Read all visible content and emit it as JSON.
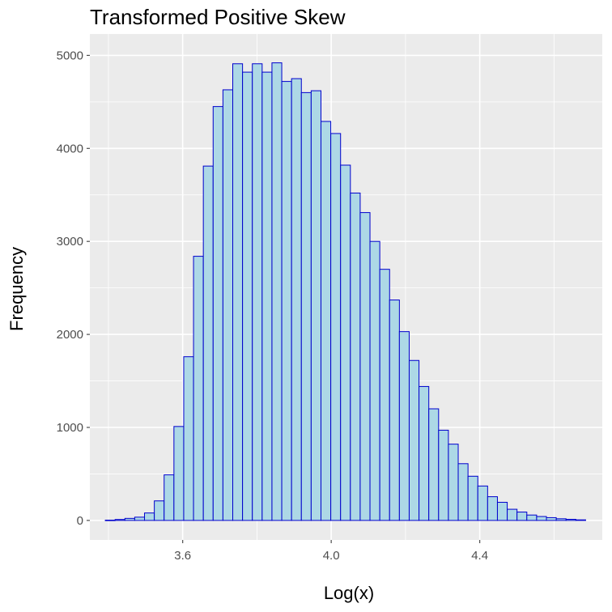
{
  "chart_data": {
    "type": "bar",
    "subtype": "histogram",
    "title": "Transformed Positive Skew",
    "xlabel": "Log(x)",
    "ylabel": "Frequency",
    "xlim": [
      3.35,
      4.73
    ],
    "ylim": [
      -210,
      5230
    ],
    "x_ticks": [
      3.6,
      4.0,
      4.4
    ],
    "x_tick_labels": [
      "3.6",
      "4.0",
      "4.4"
    ],
    "y_ticks": [
      0,
      1000,
      2000,
      3000,
      4000,
      5000
    ],
    "y_tick_labels": [
      "0",
      "1000",
      "2000",
      "3000",
      "4000",
      "5000"
    ],
    "x_minor_ticks": [
      3.4,
      3.8,
      4.2,
      4.6
    ],
    "y_minor_ticks": [
      500,
      1500,
      2500,
      3500,
      4500
    ],
    "grid": true,
    "legend": "none",
    "bin_start": 3.3916,
    "bin_width": 0.0264,
    "values": [
      3,
      10,
      22,
      35,
      80,
      210,
      490,
      1010,
      1760,
      2840,
      3810,
      4450,
      4630,
      4910,
      4820,
      4910,
      4820,
      4920,
      4720,
      4750,
      4600,
      4620,
      4290,
      4160,
      3820,
      3520,
      3310,
      3000,
      2700,
      2370,
      2030,
      1720,
      1440,
      1200,
      970,
      820,
      610,
      475,
      370,
      255,
      195,
      120,
      90,
      58,
      42,
      30,
      18,
      12,
      6
    ],
    "colors": {
      "panel": "#ebebeb",
      "grid": "#ffffff",
      "bar_fill": "#add8e6",
      "bar_stroke": "#0000cd",
      "tick": "#4d4d4d"
    }
  }
}
